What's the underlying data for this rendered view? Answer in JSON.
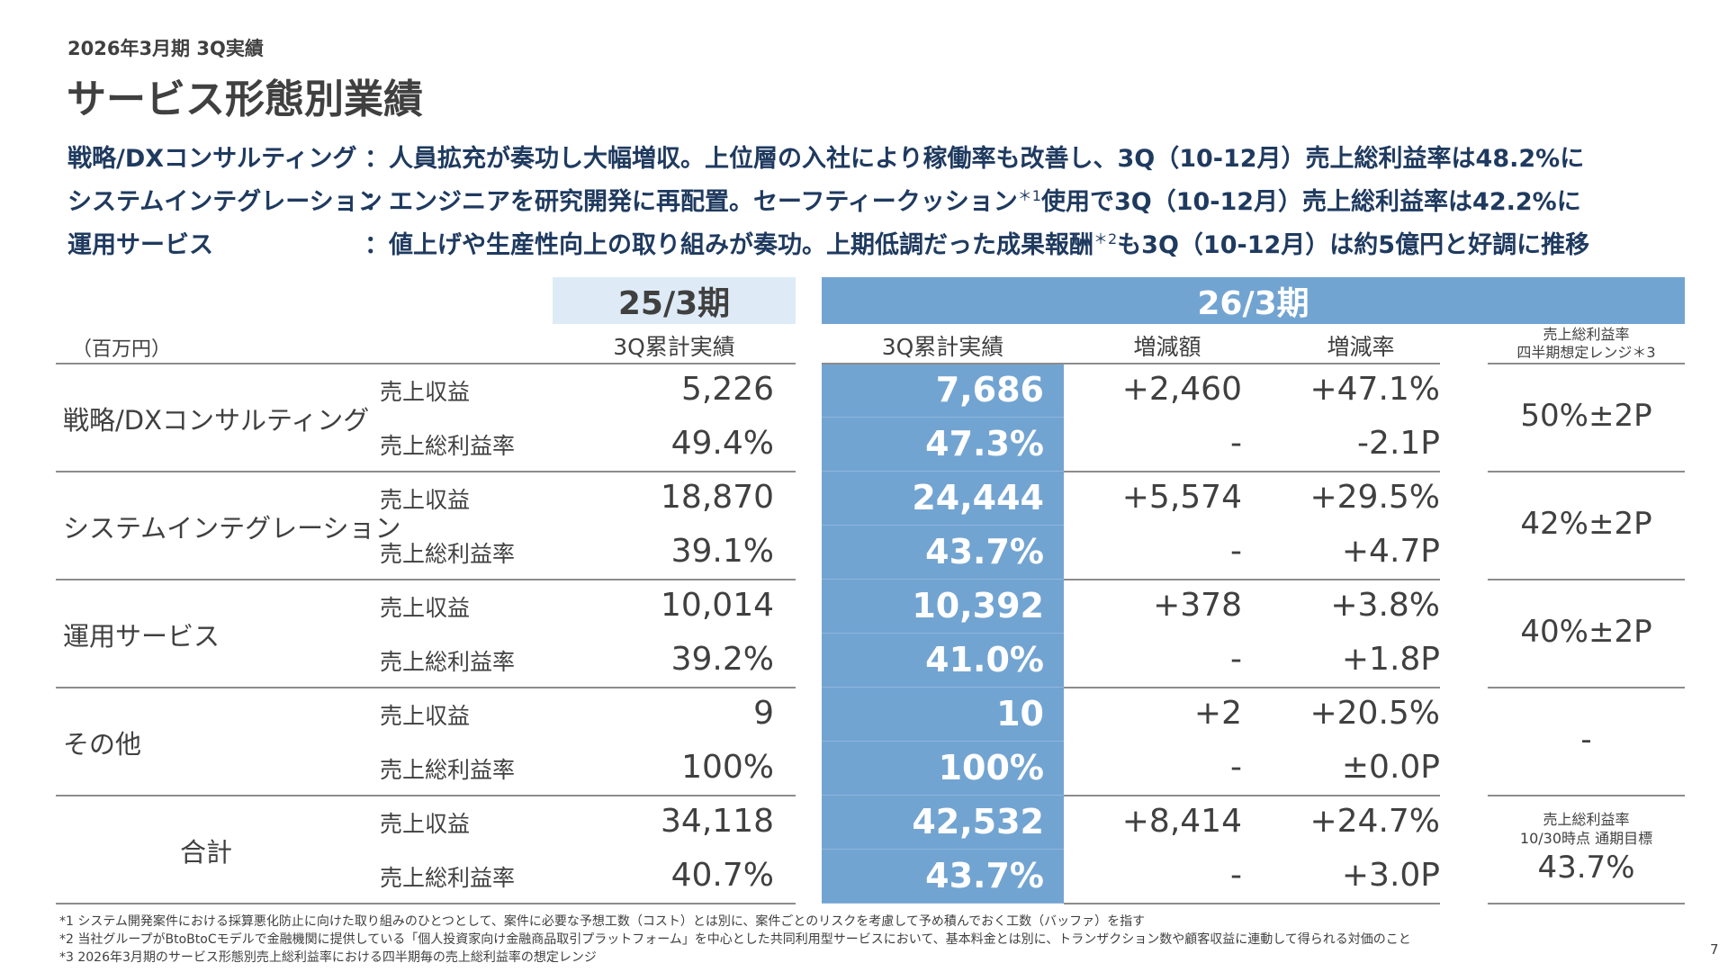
{
  "header": {
    "subtitle": "2026年3月期 3Q実績",
    "title": "サービス形態別業績"
  },
  "strategy": [
    {
      "label": "戦略/DXコンサルティング",
      "text": "：人員拡充が奏功し大幅増収。上位層の入社により稼働率も改善し、3Q（10-12月）売上総利益率は48.2%に",
      "note_pre": "",
      "note": "",
      "text2": ""
    },
    {
      "label": "システムインテグレーション",
      "text": "：エンジニアを研究開発に再配置。セーフティークッション",
      "note": "＊1",
      "text2": "使用で3Q（10-12月）売上総利益率は42.2%に"
    },
    {
      "label": "運用サービス",
      "text": "：値上げや生産性向上の取り組みが奏功。上期低調だった成果報酬",
      "note": "＊2",
      "text2": "も3Q（10-12月）は約5億円と好調に推移"
    }
  ],
  "table": {
    "unit": "（百万円）",
    "period_prev": "25/3期",
    "period_cur": "26/3期",
    "col_prev": "3Q累計実績",
    "col_cur": "3Q累計実績",
    "col_diff": "増減額",
    "col_rate": "増減率",
    "col_range": [
      "売上総利益率",
      "四半期想定レンジ＊3"
    ],
    "rows": [
      {
        "category": "戦略/DXコンサルティング",
        "range": "50%±2P",
        "items": [
          {
            "item": "売上収益",
            "prev": "5,226",
            "cur": "7,686",
            "diff": "+2,460",
            "rate": "+47.1%"
          },
          {
            "item": "売上総利益率",
            "prev": "49.4%",
            "cur": "47.3%",
            "diff": "-",
            "rate": "-2.1P"
          }
        ]
      },
      {
        "category": "システムインテグレーション",
        "range": "42%±2P",
        "items": [
          {
            "item": "売上収益",
            "prev": "18,870",
            "cur": "24,444",
            "diff": "+5,574",
            "rate": "+29.5%"
          },
          {
            "item": "売上総利益率",
            "prev": "39.1%",
            "cur": "43.7%",
            "diff": "-",
            "rate": "+4.7P"
          }
        ]
      },
      {
        "category": "運用サービス",
        "range": "40%±2P",
        "items": [
          {
            "item": "売上収益",
            "prev": "10,014",
            "cur": "10,392",
            "diff": "+378",
            "rate": "+3.8%"
          },
          {
            "item": "売上総利益率",
            "prev": "39.2%",
            "cur": "41.0%",
            "diff": "-",
            "rate": "+1.8P"
          }
        ]
      },
      {
        "category": "その他",
        "range": "-",
        "items": [
          {
            "item": "売上収益",
            "prev": "9",
            "cur": "10",
            "diff": "+2",
            "rate": "+20.5%"
          },
          {
            "item": "売上総利益率",
            "prev": "100%",
            "cur": "100%",
            "diff": "-",
            "rate": "±0.0P"
          }
        ]
      },
      {
        "category": "合計",
        "range": "",
        "items": [
          {
            "item": "売上収益",
            "prev": "34,118",
            "cur": "42,532",
            "diff": "+8,414",
            "rate": "+24.7%"
          },
          {
            "item": "売上総利益率",
            "prev": "40.7%",
            "cur": "43.7%",
            "diff": "-",
            "rate": "+3.0P"
          }
        ]
      }
    ],
    "target": {
      "label1": "売上総利益率",
      "label2": "10/30時点 通期目標",
      "value": "43.7%"
    }
  },
  "footnotes": [
    "*1 システム開発案件における採算悪化防止に向けた取り組みのひとつとして、案件に必要な予想工数（コスト）とは別に、案件ごとのリスクを考慮して予め積んでおく工数（バッファ）を指す",
    "*2 当社グループがBtoBtoCモデルで金融機関に提供している「個人投資家向け金融商品取引プラットフォーム」を中心とした共同利用型サービスにおいて、基本料金とは別に、トランザクション数や顧客収益に連動して得られる対価のこと",
    "*3 2026年3月期のサービス形態別売上総利益率における四半期毎の売上総利益率の想定レンジ"
  ],
  "page_number": "7",
  "colors": {
    "highlight": "#72a4d2",
    "prev_band": "#deebf7",
    "navy": "#1f3a5f"
  }
}
